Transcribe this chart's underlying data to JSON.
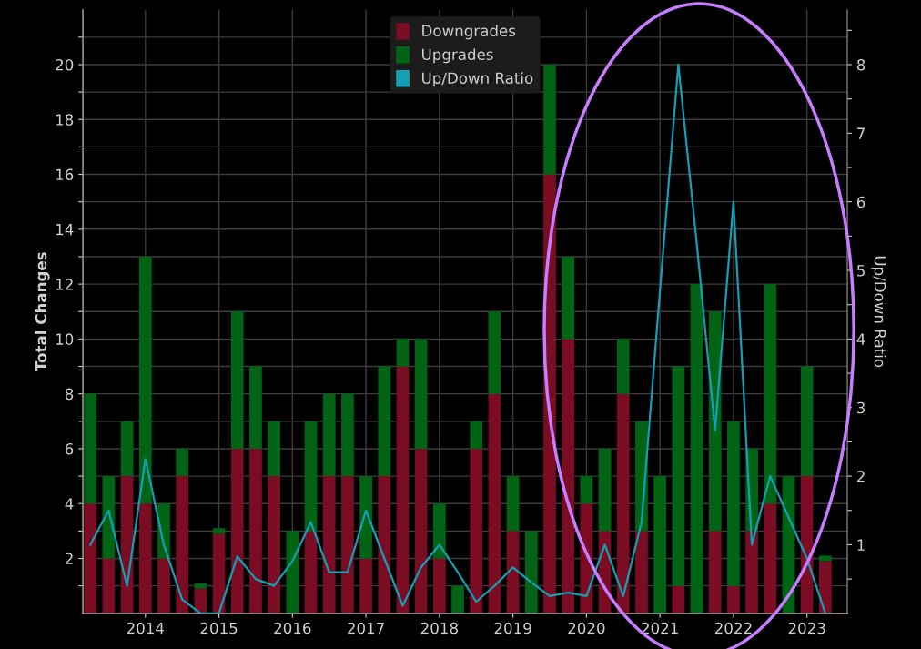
{
  "chart_data": {
    "type": "bar",
    "stacked": true,
    "ylabel": "Total Changes",
    "y2label": "Up/Down Ratio",
    "x": [
      "2013-04",
      "2013-07",
      "2013-10",
      "2014-01",
      "2014-04",
      "2014-07",
      "2014-10",
      "2015-01",
      "2015-04",
      "2015-07",
      "2015-10",
      "2016-01",
      "2016-04",
      "2016-07",
      "2016-10",
      "2017-01",
      "2017-04",
      "2017-07",
      "2017-10",
      "2018-01",
      "2018-04",
      "2018-07",
      "2018-10",
      "2019-01",
      "2019-04",
      "2019-07",
      "2019-10",
      "2020-01",
      "2020-04",
      "2020-07",
      "2020-10",
      "2021-01",
      "2021-04",
      "2021-07",
      "2021-10",
      "2022-01",
      "2022-04",
      "2022-07",
      "2022-10",
      "2023-01",
      "2023-04"
    ],
    "series": [
      {
        "name": "Downgrades",
        "color": "#7a0c24",
        "values": [
          4,
          2,
          5,
          4,
          2,
          5,
          0.9,
          2.9,
          6,
          6,
          5,
          0,
          3,
          5,
          5,
          2,
          5,
          9,
          6,
          2,
          0,
          6,
          8,
          3,
          0,
          16,
          10,
          4,
          3,
          8,
          3,
          0,
          1,
          0,
          3,
          1,
          3,
          4,
          0,
          5,
          1.9
        ]
      },
      {
        "name": "Upgrades",
        "color": "#006414",
        "values": [
          4,
          3,
          2,
          9,
          2,
          1,
          0.2,
          0.2,
          5,
          3,
          2,
          3,
          4,
          3,
          3,
          3,
          4,
          1,
          4,
          2,
          1,
          1,
          3,
          2,
          3,
          4,
          3,
          1,
          3,
          2,
          4,
          5,
          8,
          12,
          8,
          6,
          3,
          8,
          5,
          4,
          0.2
        ]
      },
      {
        "name": "Up/Down Ratio",
        "type": "line",
        "axis": "y2",
        "color": "#14a0b4",
        "values": [
          1.0,
          1.5,
          0.4,
          2.25,
          1.0,
          0.2,
          0,
          0,
          0.83,
          0.5,
          0.4,
          0.76,
          1.33,
          0.6,
          0.6,
          1.5,
          0.8,
          0.11,
          0.67,
          1.0,
          0.6,
          0.17,
          0.4,
          0.67,
          0.45,
          0.25,
          0.3,
          0.25,
          1.0,
          0.25,
          1.33,
          4.7,
          8,
          5.4,
          2.67,
          6,
          1.0,
          2.0,
          1.4,
          0.8,
          0
        ]
      }
    ],
    "xlim": [
      "2013-02-25",
      "2023-07-19"
    ],
    "xticks": [
      {
        "value": "2014",
        "label": "2014"
      },
      {
        "value": "2015",
        "label": "2015"
      },
      {
        "value": "2016",
        "label": "2016"
      },
      {
        "value": "2017",
        "label": "2017"
      },
      {
        "value": "2018",
        "label": "2018"
      },
      {
        "value": "2019",
        "label": "2019"
      },
      {
        "value": "2020",
        "label": "2020"
      },
      {
        "value": "2021",
        "label": "2021"
      },
      {
        "value": "2022",
        "label": "2022"
      },
      {
        "value": "2023",
        "label": "2023"
      }
    ],
    "ylim": [
      0,
      22
    ],
    "yticks": [
      {
        "value": 1,
        "label": null
      },
      2,
      {
        "value": 3,
        "label": null
      },
      4,
      {
        "value": 5,
        "label": null
      },
      6,
      {
        "value": 7,
        "label": null
      },
      8,
      {
        "value": 9,
        "label": null
      },
      10,
      {
        "value": 11,
        "label": null
      },
      12,
      {
        "value": 13,
        "label": null
      },
      14,
      {
        "value": 15,
        "label": null
      },
      16,
      {
        "value": 17,
        "label": null
      },
      18,
      {
        "value": 19,
        "label": null
      },
      20,
      {
        "value": 21,
        "label": null
      }
    ],
    "y2lim": [
      0,
      8.8
    ],
    "y2ticks": [
      {
        "value": 0.5,
        "label": null
      },
      1,
      {
        "value": 1.5,
        "label": null
      },
      2,
      {
        "value": 2.5,
        "label": null
      },
      3,
      {
        "value": 3.5,
        "label": null
      },
      4,
      {
        "value": 4.5,
        "label": null
      },
      5,
      {
        "value": 5.5,
        "label": null
      },
      6,
      {
        "value": 6.5,
        "label": null
      },
      7,
      {
        "value": 7.5,
        "label": null
      },
      8,
      {
        "value": 8.5,
        "label": null
      }
    ],
    "grid": true,
    "legend": "top"
  }
}
